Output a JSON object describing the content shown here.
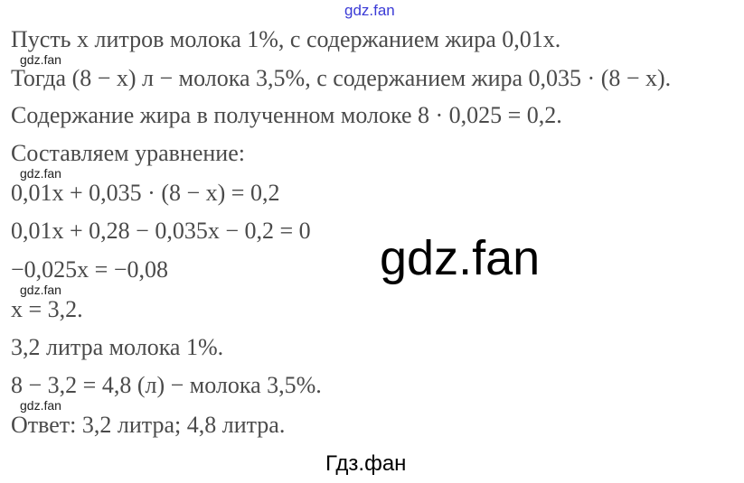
{
  "watermarks": {
    "top": "gdz.fan",
    "small": "gdz.fan",
    "big": "gdz.fan",
    "bottom": "Гдз.фан"
  },
  "lines": [
    "Пусть x литров молока 1%, с содержанием жира 0,01x.",
    "Тогда (8 − x) л − молока 3,5%, с содержанием жира 0,035 · (8 − x).",
    "Содержание жира в полученном молоке 8 · 0,025 = 0,2.",
    "Составляем уравнение:",
    "0,01x + 0,035 · (8 − x) = 0,2",
    "0,01x + 0,28 − 0,035x − 0,2 = 0",
    "−0,025x = −0,08",
    "x = 3,2.",
    "3,2 литра молока 1%.",
    "8 − 3,2 = 4,8 (л) − молока 3,5%.",
    "Ответ: 3,2 литра;  4,8 литра."
  ]
}
